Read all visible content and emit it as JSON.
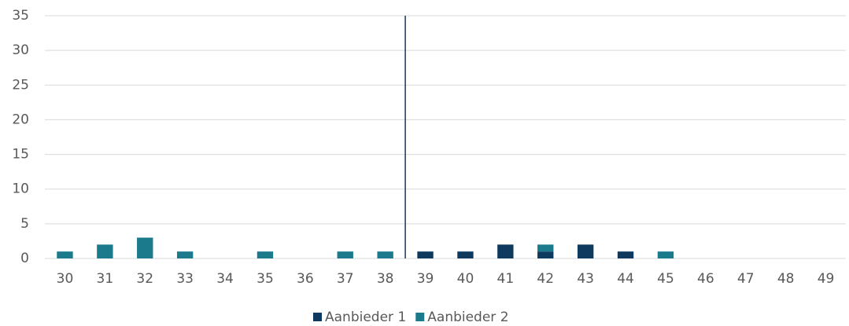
{
  "chart_data": {
    "type": "stacked_bar",
    "x": [
      30,
      31,
      32,
      33,
      34,
      35,
      36,
      37,
      38,
      39,
      40,
      41,
      42,
      43,
      44,
      45,
      46,
      47,
      48,
      49
    ],
    "xlim": [
      29.5,
      49.5
    ],
    "series": [
      {
        "name": "Aanbieder 1",
        "color": "#0e3a60",
        "values": [
          0,
          0,
          0,
          0,
          0,
          0,
          0,
          0,
          0,
          1,
          1,
          2,
          1,
          2,
          1,
          0,
          0,
          0,
          0,
          0
        ]
      },
      {
        "name": "Aanbieder 2",
        "color": "#1b7a8c",
        "values": [
          1,
          2,
          3,
          1,
          0,
          1,
          0,
          1,
          1,
          0,
          0,
          0,
          1,
          0,
          0,
          1,
          0,
          0,
          0,
          0
        ]
      }
    ],
    "ylim": [
      0,
      35
    ],
    "yticks": [
      0,
      5,
      10,
      15,
      20,
      25,
      30,
      35
    ],
    "grid": true,
    "reference_x": 38.5,
    "reference_color": "#0e3a60",
    "legend": "bottom"
  }
}
